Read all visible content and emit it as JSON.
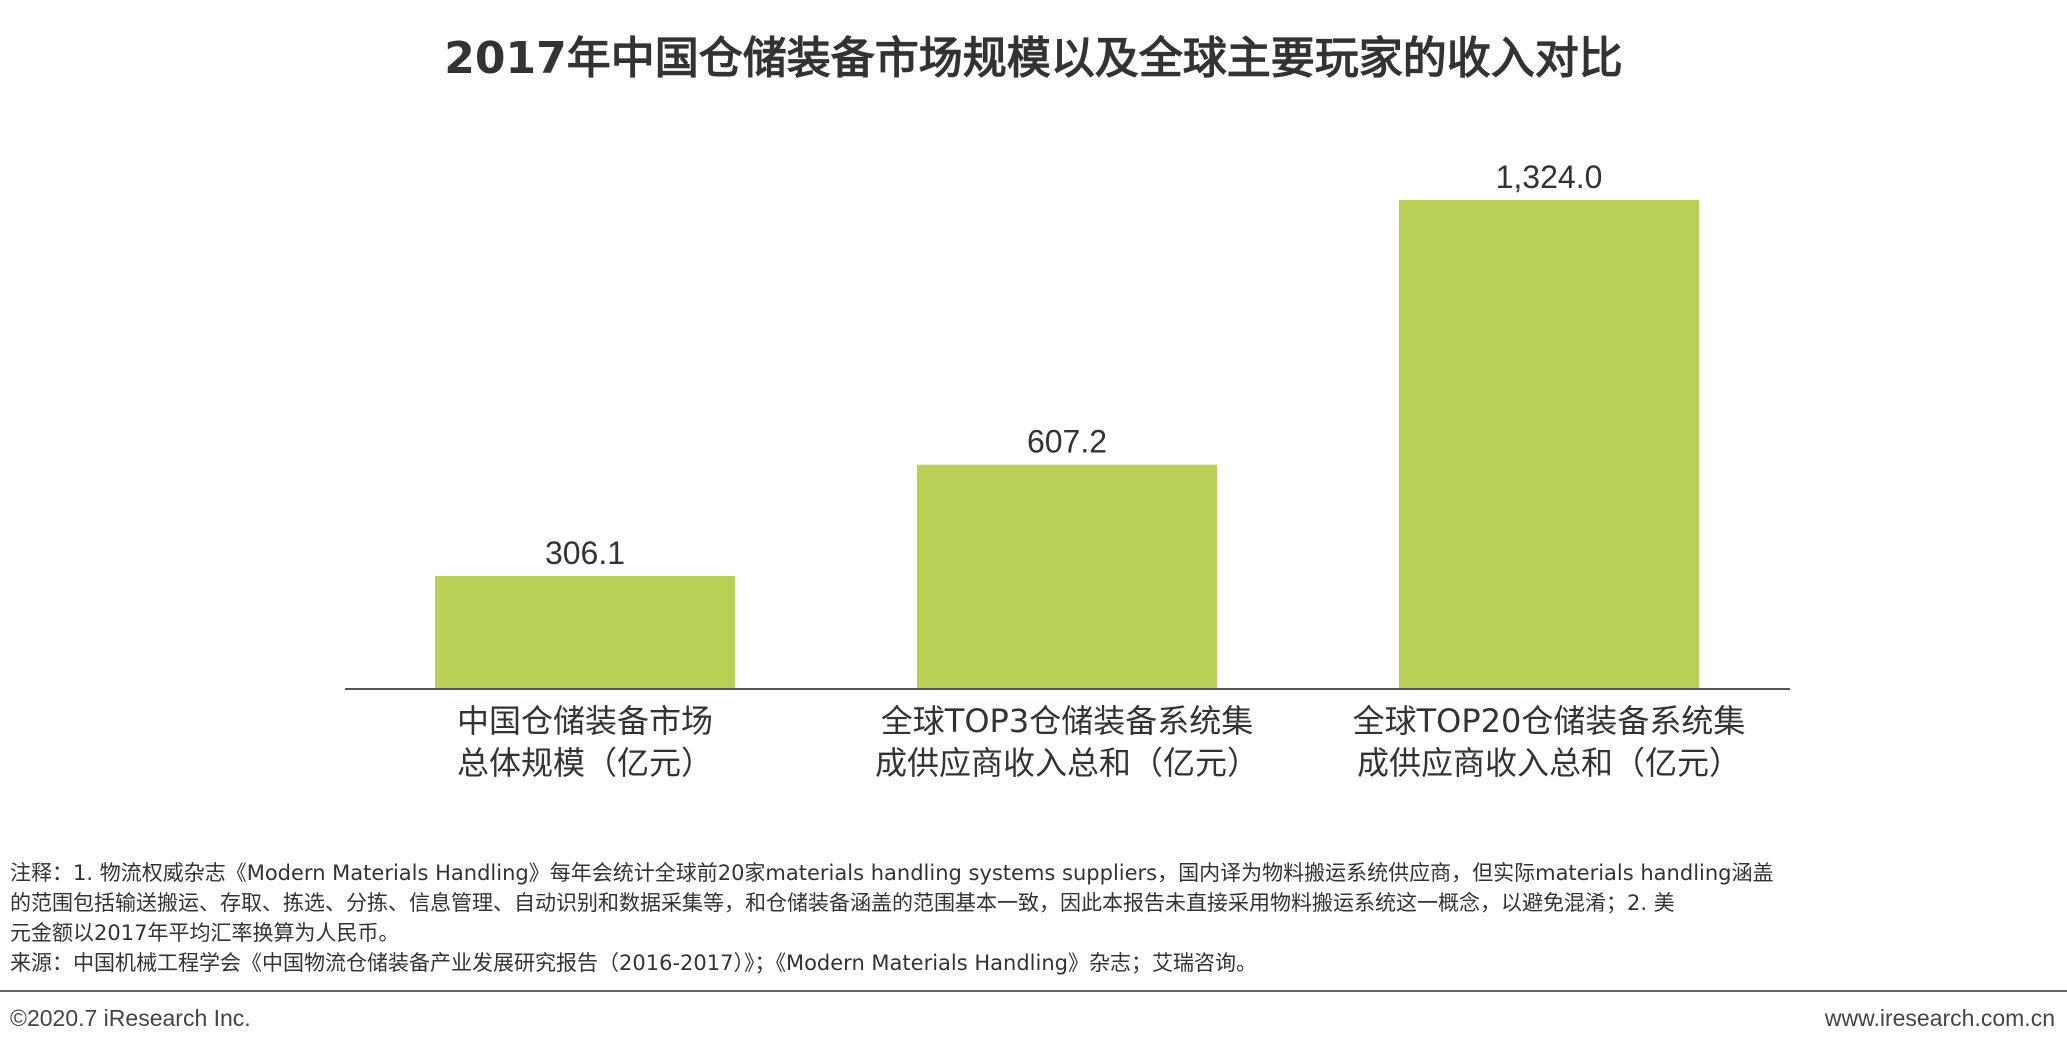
{
  "title": "2017年中国仓储装备市场规模以及全球主要玩家的收入对比",
  "chart_data": {
    "type": "bar",
    "title": "2017年中国仓储装备市场规模以及全球主要玩家的收入对比",
    "categories": [
      [
        "中国仓储装备市场",
        "总体规模（亿元）"
      ],
      [
        "全球TOP3仓储装备系统集",
        "成供应商收入总和（亿元）"
      ],
      [
        "全球TOP20仓储装备系统集",
        "成供应商收入总和（亿元）"
      ]
    ],
    "values": [
      306.1,
      607.2,
      1324.0
    ],
    "value_labels": [
      "306.1",
      "607.2",
      "1,324.0"
    ],
    "ylim": [
      0,
      1324.0
    ],
    "grid": false,
    "legend": "none",
    "bar_color": "#b8d055",
    "axis_color": "#555555"
  },
  "notes": {
    "line1": "注释：1. 物流权威杂志《Modern Materials Handling》每年会统计全球前20家materials handling systems suppliers，国内译为物料搬运系统供应商，但实际materials handling涵盖",
    "line2": "的范围包括输送搬运、存取、拣选、分拣、信息管理、自动识别和数据采集等，和仓储装备涵盖的范围基本一致，因此本报告未直接采用物料搬运系统这一概念，以避免混淆；2. 美",
    "line3": "元金额以2017年平均汇率换算为人民币。",
    "source": "来源：中国机械工程学会《中国物流仓储装备产业发展研究报告（2016-2017）》；《Modern Materials Handling》杂志；艾瑞咨询。"
  },
  "footer": {
    "copyright": "©2020.7 iResearch Inc.",
    "website": "www.iresearch.com.cn"
  }
}
